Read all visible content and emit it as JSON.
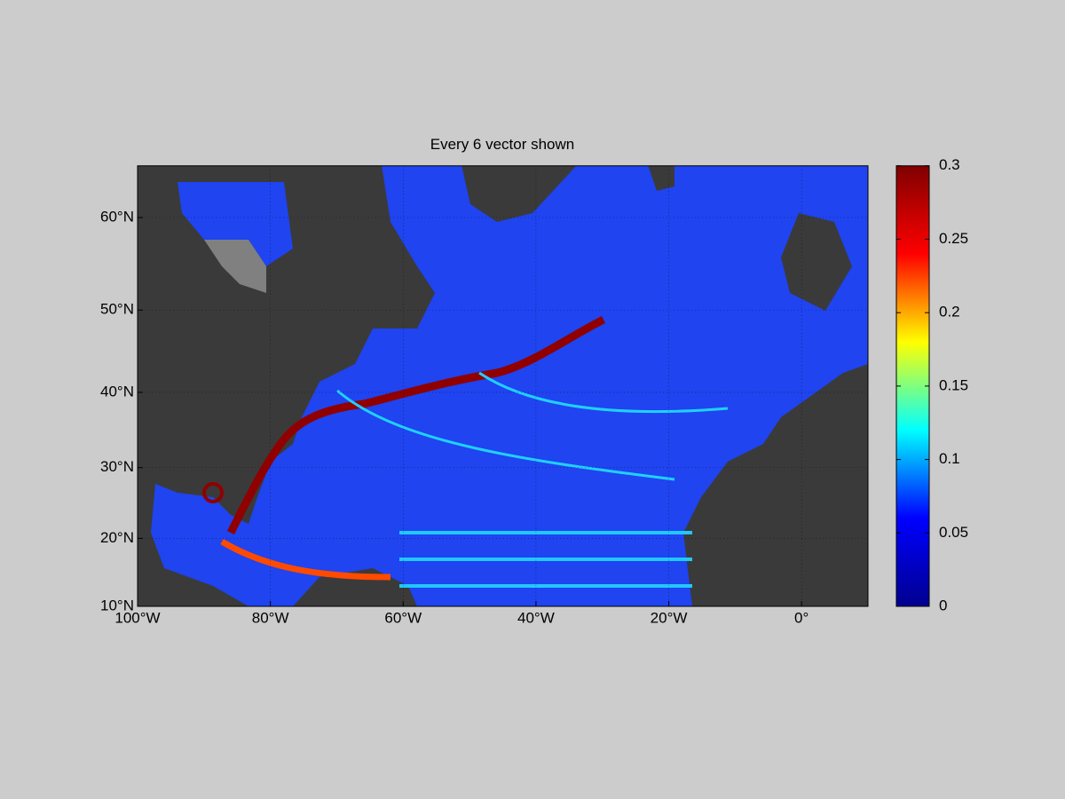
{
  "chart_data": {
    "type": "map",
    "title": "Every 6 vector shown",
    "projection": "miller",
    "xlim": [
      -100,
      10
    ],
    "ylim": [
      10,
      65
    ],
    "xticks": [
      {
        "value": -100,
        "label": "100°W"
      },
      {
        "value": -80,
        "label": "80°W"
      },
      {
        "value": -60,
        "label": "60°W"
      },
      {
        "value": -40,
        "label": "40°W"
      },
      {
        "value": -20,
        "label": "20°W"
      },
      {
        "value": 0,
        "label": "0°"
      }
    ],
    "yticks": [
      {
        "value": 10,
        "label": "10°N"
      },
      {
        "value": 20,
        "label": "20°N"
      },
      {
        "value": 30,
        "label": "30°N"
      },
      {
        "value": 40,
        "label": "40°N"
      },
      {
        "value": 50,
        "label": "50°N"
      },
      {
        "value": 60,
        "label": "60°N"
      }
    ],
    "grid": true,
    "colorbar": {
      "clim": [
        0,
        0.3
      ],
      "ticks": [
        0,
        0.05,
        0.1,
        0.15,
        0.2,
        0.25,
        0.3
      ],
      "colormap": [
        "#00008f",
        "#0000ff",
        "#00ffff",
        "#ffff00",
        "#ff0000",
        "#800000"
      ]
    }
  }
}
